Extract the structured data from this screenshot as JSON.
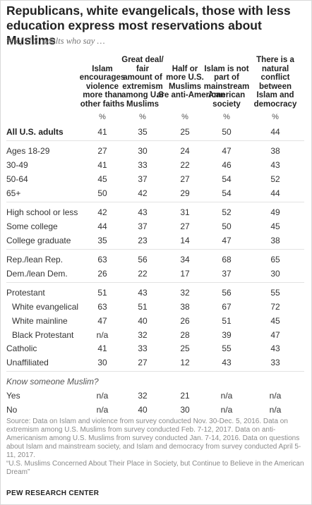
{
  "title": "Republicans, white evangelicals, those with less education express most reservations about Muslims",
  "subtitle": "% of U.S. adults who say …",
  "chart_data": {
    "type": "table",
    "columns": [
      "Islam encourages violence more than other faiths",
      "Great deal/ fair amount of extremism among U.S Muslims",
      "Half or more U.S. Muslims are anti-American",
      "Islam is not part of mainstream American society",
      "There is a natural conflict between Islam and democracy"
    ],
    "unit_label": "%",
    "rows": [
      {
        "label": "All U.S. adults",
        "style": "bold",
        "values": [
          "41",
          "35",
          "25",
          "50",
          "44"
        ]
      },
      {
        "label": "Ages 18-29",
        "values": [
          "27",
          "30",
          "24",
          "47",
          "38"
        ]
      },
      {
        "label": "30-49",
        "values": [
          "41",
          "33",
          "22",
          "46",
          "43"
        ]
      },
      {
        "label": "50-64",
        "values": [
          "45",
          "37",
          "27",
          "54",
          "52"
        ]
      },
      {
        "label": "65+",
        "values": [
          "50",
          "42",
          "29",
          "54",
          "44"
        ]
      },
      {
        "label": "High school or less",
        "values": [
          "42",
          "43",
          "31",
          "52",
          "49"
        ]
      },
      {
        "label": "Some college",
        "values": [
          "44",
          "37",
          "27",
          "50",
          "45"
        ]
      },
      {
        "label": "College graduate",
        "values": [
          "35",
          "23",
          "14",
          "47",
          "38"
        ]
      },
      {
        "label": "Rep./lean Rep.",
        "values": [
          "63",
          "56",
          "34",
          "68",
          "65"
        ]
      },
      {
        "label": "Dem./lean Dem.",
        "values": [
          "26",
          "22",
          "17",
          "37",
          "30"
        ]
      },
      {
        "label": "Protestant",
        "values": [
          "51",
          "43",
          "32",
          "56",
          "55"
        ]
      },
      {
        "label": "White evangelical",
        "indent": true,
        "values": [
          "63",
          "51",
          "38",
          "67",
          "72"
        ]
      },
      {
        "label": "White mainline",
        "indent": true,
        "values": [
          "47",
          "40",
          "26",
          "51",
          "45"
        ]
      },
      {
        "label": "Black Protestant",
        "indent": true,
        "values": [
          "n/a",
          "32",
          "28",
          "39",
          "47"
        ]
      },
      {
        "label": "Catholic",
        "values": [
          "41",
          "33",
          "25",
          "55",
          "43"
        ]
      },
      {
        "label": "Unaffiliated",
        "values": [
          "30",
          "27",
          "12",
          "43",
          "33"
        ]
      },
      {
        "label": "Know someone Muslim?",
        "style": "italic",
        "values": []
      },
      {
        "label": "Yes",
        "values": [
          "n/a",
          "32",
          "21",
          "n/a",
          "n/a"
        ]
      },
      {
        "label": "No",
        "values": [
          "n/a",
          "40",
          "30",
          "n/a",
          "n/a"
        ]
      }
    ]
  },
  "source": {
    "line1": "Source: Data on Islam and violence from survey conducted Nov. 30-Dec. 5, 2016. Data on extremism among U.S. Muslims from survey conducted Feb. 7-12, 2017. Data on anti-Americanism among U.S. Muslims from survey conducted Jan. 7-14, 2016. Data on questions about Islam and mainstream society, and Islam and democracy from survey conducted April 5-11, 2017.",
    "line2": "“U.S. Muslims Concerned About Their Place in Society, but Continue to Believe in the American Dream”"
  },
  "logo": "PEW RESEARCH CENTER"
}
